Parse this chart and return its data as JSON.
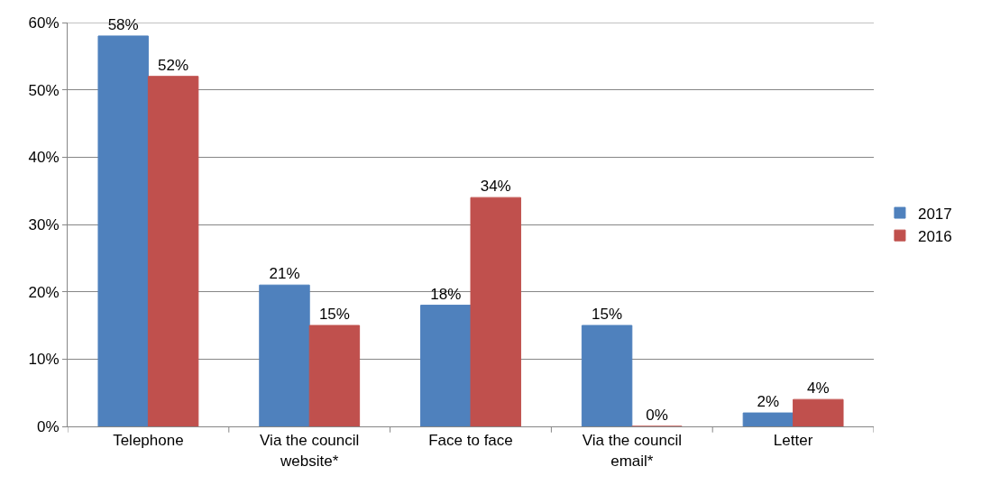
{
  "chart_data": {
    "type": "bar",
    "categories": [
      "Telephone",
      "Via the council website*",
      "Face to face",
      "Via the council email*",
      "Letter"
    ],
    "series": [
      {
        "name": "2017",
        "color": "#4f81bd",
        "values": [
          58,
          21,
          18,
          15,
          2
        ],
        "value_labels": [
          "58%",
          "21%",
          "18%",
          "15%",
          "2%"
        ]
      },
      {
        "name": "2016",
        "color": "#c0504d",
        "values": [
          52,
          15,
          34,
          0,
          4
        ],
        "value_labels": [
          "52%",
          "15%",
          "34%",
          "0%",
          "4%"
        ]
      }
    ],
    "ylim": [
      0,
      60
    ],
    "yticks": [
      {
        "value": 0,
        "label": "0%"
      },
      {
        "value": 10,
        "label": "10%"
      },
      {
        "value": 20,
        "label": "20%"
      },
      {
        "value": 30,
        "label": "30%"
      },
      {
        "value": 40,
        "label": "40%"
      },
      {
        "value": 50,
        "label": "50%"
      },
      {
        "value": 60,
        "label": "60%"
      }
    ],
    "grid": "y",
    "legend": "right"
  }
}
